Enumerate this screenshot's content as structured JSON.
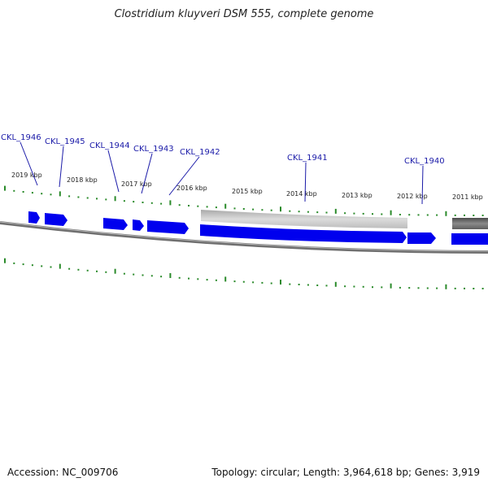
{
  "header": {
    "title": "Clostridium kluyveri DSM 555, complete genome"
  },
  "footer": {
    "accession": "Accession: NC_009706",
    "summary": "Topology: circular; Length: 3,964,618 bp; Genes: 3,919"
  },
  "colors": {
    "gene_fill": "#0000ee",
    "gene_label": "#1a1aa8",
    "tick": "#2a8a2a",
    "backbone": "#7a7a7a",
    "background": "#ffffff"
  },
  "scale": {
    "labels": [
      "2019 kbp",
      "2018 kbp",
      "2017 kbp",
      "2016 kbp",
      "2015 kbp",
      "2014 kbp",
      "2013 kbp",
      "2012 kbp",
      "2011 kbp"
    ]
  },
  "genes": [
    {
      "label": "CKL_1946"
    },
    {
      "label": "CKL_1945"
    },
    {
      "label": "CKL_1944"
    },
    {
      "label": "CKL_1943"
    },
    {
      "label": "CKL_1942"
    },
    {
      "label": "CKL_1941"
    },
    {
      "label": "CKL_1940"
    }
  ]
}
